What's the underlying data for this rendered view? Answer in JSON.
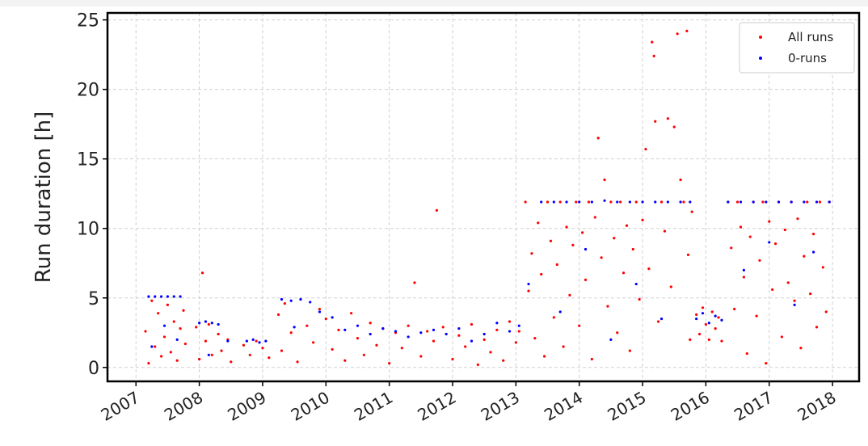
{
  "chart_data": {
    "type": "scatter",
    "ylabel": "Run duration [h]",
    "xlim": [
      2006.55,
      2018.42
    ],
    "xticks": [
      2007,
      2008,
      2009,
      2010,
      2011,
      2012,
      2013,
      2014,
      2015,
      2016,
      2017,
      2018
    ],
    "ylim": [
      -1,
      25.5
    ],
    "yticks": [
      0,
      5,
      10,
      15,
      20,
      25
    ],
    "grid": true,
    "legend": "upper right",
    "series": [
      {
        "name": "All runs",
        "color": "#ff0000",
        "x": [
          2007.15,
          2007.2,
          2007.25,
          2007.3,
          2007.35,
          2007.4,
          2007.45,
          2007.5,
          2007.55,
          2007.6,
          2007.65,
          2007.7,
          2007.75,
          2007.78,
          2007.95,
          2008.0,
          2008.05,
          2008.1,
          2008.15,
          2008.2,
          2008.3,
          2008.35,
          2008.45,
          2008.5,
          2008.7,
          2008.8,
          2008.9,
          2009.0,
          2009.1,
          2009.25,
          2009.3,
          2009.35,
          2009.45,
          2009.55,
          2009.6,
          2009.7,
          2009.8,
          2009.9,
          2010.0,
          2010.1,
          2010.2,
          2010.3,
          2010.4,
          2010.5,
          2010.6,
          2010.7,
          2010.8,
          2010.9,
          2011.0,
          2011.1,
          2011.2,
          2011.3,
          2011.4,
          2011.5,
          2011.6,
          2011.7,
          2011.75,
          2011.85,
          2012.0,
          2012.1,
          2012.2,
          2012.3,
          2012.4,
          2012.5,
          2012.6,
          2012.7,
          2012.8,
          2012.9,
          2013.0,
          2013.05,
          2013.15,
          2013.2,
          2013.25,
          2013.3,
          2013.35,
          2013.4,
          2013.45,
          2013.5,
          2013.55,
          2013.6,
          2013.65,
          2013.7,
          2013.75,
          2013.8,
          2013.85,
          2013.9,
          2013.95,
          2014.0,
          2014.05,
          2014.1,
          2014.15,
          2014.2,
          2014.25,
          2014.3,
          2014.35,
          2014.4,
          2014.45,
          2014.5,
          2014.55,
          2014.6,
          2014.65,
          2014.7,
          2014.75,
          2014.8,
          2014.85,
          2014.9,
          2014.95,
          2015.0,
          2015.05,
          2015.1,
          2015.15,
          2015.18,
          2015.2,
          2015.25,
          2015.3,
          2015.35,
          2015.4,
          2015.45,
          2015.5,
          2015.55,
          2015.6,
          2015.65,
          2015.7,
          2015.72,
          2015.75,
          2015.78,
          2015.85,
          2015.9,
          2015.95,
          2016.0,
          2016.05,
          2016.1,
          2016.15,
          2016.2,
          2016.25,
          2016.35,
          2016.4,
          2016.45,
          2016.5,
          2016.55,
          2016.6,
          2016.65,
          2016.7,
          2016.75,
          2016.8,
          2016.85,
          2016.9,
          2016.95,
          2017.0,
          2017.05,
          2017.1,
          2017.15,
          2017.2,
          2017.25,
          2017.3,
          2017.35,
          2017.4,
          2017.45,
          2017.5,
          2017.55,
          2017.6,
          2017.65,
          2017.7,
          2017.75,
          2017.8,
          2017.85,
          2017.9,
          2017.95
        ],
        "values": [
          2.6,
          0.3,
          4.8,
          1.5,
          3.9,
          0.8,
          2.2,
          4.5,
          1.1,
          3.3,
          0.5,
          2.8,
          4.1,
          1.7,
          2.9,
          0.6,
          6.8,
          1.9,
          3.1,
          0.9,
          2.4,
          1.2,
          2.0,
          0.4,
          1.6,
          0.9,
          1.9,
          1.4,
          0.7,
          3.8,
          1.2,
          4.6,
          2.5,
          0.4,
          4.9,
          3.0,
          1.8,
          4.2,
          3.5,
          1.3,
          2.7,
          0.5,
          3.9,
          2.1,
          0.9,
          3.2,
          1.6,
          2.8,
          0.3,
          2.5,
          1.4,
          3.0,
          6.1,
          0.8,
          2.6,
          1.9,
          11.3,
          2.9,
          0.6,
          2.3,
          1.5,
          3.1,
          0.2,
          2.0,
          1.1,
          2.7,
          0.5,
          3.3,
          1.8,
          2.6,
          11.9,
          5.5,
          8.2,
          2.1,
          10.4,
          6.7,
          0.8,
          11.9,
          9.1,
          3.6,
          7.4,
          11.9,
          1.5,
          10.1,
          5.2,
          8.8,
          11.9,
          3.0,
          9.7,
          6.3,
          11.9,
          0.6,
          10.8,
          16.5,
          7.9,
          13.5,
          4.4,
          11.9,
          9.3,
          2.5,
          11.9,
          6.8,
          10.2,
          1.2,
          8.5,
          11.9,
          4.9,
          10.6,
          15.7,
          7.1,
          23.4,
          22.4,
          17.7,
          3.3,
          11.9,
          9.8,
          17.9,
          5.8,
          17.3,
          24.0,
          13.5,
          11.9,
          24.2,
          8.1,
          2.0,
          11.2,
          3.8,
          2.4,
          4.3,
          3.1,
          2.0,
          4.0,
          2.8,
          3.6,
          1.9,
          11.9,
          8.6,
          4.2,
          11.9,
          10.1,
          6.5,
          1.0,
          9.4,
          11.9,
          3.7,
          7.7,
          11.9,
          0.3,
          10.5,
          5.6,
          8.9,
          11.9,
          2.2,
          9.9,
          6.1,
          11.9,
          4.8,
          10.7,
          1.4,
          8.0,
          11.9,
          5.3,
          9.6,
          2.9,
          11.9,
          7.2,
          4.0,
          11.9
        ]
      },
      {
        "name": "0-runs",
        "color": "#0000ff",
        "x": [
          2007.2,
          2007.3,
          2007.4,
          2007.5,
          2007.6,
          2007.7,
          2007.25,
          2007.45,
          2007.65,
          2008.0,
          2008.1,
          2008.2,
          2008.3,
          2008.45,
          2008.15,
          2008.75,
          2008.85,
          2008.95,
          2009.05,
          2009.3,
          2009.45,
          2009.6,
          2009.75,
          2009.9,
          2009.5,
          2010.1,
          2010.3,
          2010.5,
          2010.7,
          2010.9,
          2011.1,
          2011.3,
          2011.5,
          2011.7,
          2011.9,
          2012.1,
          2012.3,
          2012.5,
          2012.7,
          2012.9,
          2013.05,
          2013.2,
          2013.4,
          2013.6,
          2013.8,
          2014.0,
          2014.2,
          2014.4,
          2014.6,
          2014.8,
          2015.0,
          2015.2,
          2015.4,
          2015.6,
          2015.75,
          2013.7,
          2014.1,
          2014.5,
          2014.9,
          2015.3,
          2015.85,
          2015.95,
          2016.05,
          2016.15,
          2016.25,
          2016.35,
          2016.55,
          2016.75,
          2016.95,
          2017.15,
          2017.35,
          2017.55,
          2017.75,
          2017.95,
          2016.6,
          2017.0,
          2017.4,
          2017.7
        ],
        "values": [
          5.1,
          5.1,
          5.1,
          5.1,
          5.1,
          5.1,
          1.5,
          3.0,
          2.0,
          3.2,
          3.3,
          3.2,
          3.1,
          1.9,
          0.9,
          1.9,
          2.0,
          1.8,
          1.9,
          4.9,
          4.8,
          4.9,
          4.7,
          4.0,
          2.9,
          3.6,
          2.7,
          3.0,
          2.4,
          2.8,
          2.6,
          2.2,
          2.5,
          2.7,
          2.4,
          2.8,
          1.9,
          2.4,
          3.2,
          2.6,
          3.0,
          6.0,
          11.9,
          11.9,
          11.9,
          11.9,
          11.9,
          12.0,
          11.9,
          11.9,
          11.9,
          11.9,
          11.9,
          11.9,
          11.9,
          4.0,
          8.5,
          2.0,
          6.0,
          3.5,
          3.5,
          3.9,
          3.2,
          3.7,
          3.4,
          11.9,
          11.9,
          11.9,
          11.9,
          11.9,
          11.9,
          11.9,
          11.9,
          11.9,
          7.0,
          9.0,
          4.5,
          8.3
        ]
      }
    ]
  }
}
